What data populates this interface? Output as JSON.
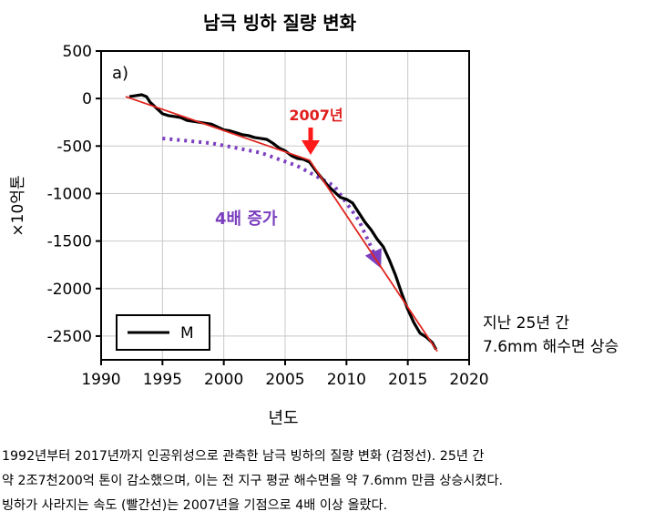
{
  "chart_data": {
    "type": "line",
    "title": "남극 빙하 질량 변화",
    "panel_label": "a)",
    "xlabel": "년도",
    "ylabel": "×10억톤",
    "xlim": [
      1990,
      2020
    ],
    "ylim": [
      -2750,
      500
    ],
    "xticks": [
      1990,
      1995,
      2000,
      2005,
      2010,
      2015,
      2020
    ],
    "yticks": [
      500,
      0,
      -500,
      -1000,
      -1500,
      -2000,
      -2500
    ],
    "grid": true,
    "legend": {
      "position": "bottom-left",
      "entries": [
        "M"
      ]
    },
    "series": [
      {
        "name": "M",
        "color": "#000000",
        "x": [
          1992.3,
          1992.8,
          1993.3,
          1993.7,
          1994.0,
          1994.5,
          1995.0,
          1995.5,
          1996.0,
          1996.5,
          1997.0,
          1997.5,
          1998.0,
          1998.5,
          1999.0,
          1999.5,
          2000.0,
          2000.5,
          2001.0,
          2001.5,
          2002.0,
          2002.5,
          2003.0,
          2003.5,
          2004.0,
          2004.5,
          2005.0,
          2005.5,
          2006.0,
          2006.5,
          2007.0,
          2007.5,
          2008.0,
          2008.5,
          2009.0,
          2009.5,
          2010.0,
          2010.5,
          2011.0,
          2011.5,
          2012.0,
          2012.5,
          2013.0,
          2013.5,
          2014.0,
          2014.5,
          2015.0,
          2015.5,
          2016.0,
          2016.5,
          2017.0,
          2017.3
        ],
        "y": [
          20,
          30,
          40,
          20,
          -40,
          -100,
          -160,
          -180,
          -190,
          -200,
          -230,
          -240,
          -250,
          -260,
          -270,
          -300,
          -330,
          -340,
          -360,
          -380,
          -390,
          -410,
          -420,
          -430,
          -470,
          -520,
          -550,
          -600,
          -630,
          -640,
          -670,
          -760,
          -840,
          -920,
          -980,
          -1040,
          -1060,
          -1100,
          -1200,
          -1300,
          -1380,
          -1480,
          -1560,
          -1700,
          -1860,
          -2050,
          -2220,
          -2360,
          -2470,
          -2510,
          -2570,
          -2640
        ]
      },
      {
        "name": "",
        "color": "#e0261f",
        "x": [
          1992.0,
          2007.0,
          2017.4
        ],
        "y": [
          20,
          -650,
          -2660
        ]
      },
      {
        "name": "",
        "color": "#7b3fbf",
        "style": "dotted",
        "x": [
          1995.0,
          1999.0,
          2003.0,
          2006.0,
          2009.0,
          2011.0,
          2012.5
        ],
        "y": [
          -420,
          -470,
          -570,
          -710,
          -920,
          -1280,
          -1700
        ]
      }
    ],
    "annotations": [
      {
        "text": "2007년",
        "color": "#e01e1e",
        "x": 2007,
        "y": -300
      },
      {
        "text": "4배 증가",
        "color": "#7b3fbf",
        "x": 2002.2,
        "y": -1260
      }
    ]
  },
  "side_note": {
    "line1": "지난 25년 간",
    "line2": "7.6mm 해수면 상승"
  },
  "caption": {
    "line1": "1992년부터 2017년까지 인공위성으로 관측한 남극 빙하의 질량 변화 (검정선). 25년 간",
    "line2": "약 2조7천200억 톤이 감소했으며, 이는 전 지구 평균 해수면을 약 7.6mm 만큼 상승시켰다.",
    "line3": "빙하가 사라지는 속도 (빨간선)는 2007년을 기점으로 4배 이상 올랐다."
  }
}
